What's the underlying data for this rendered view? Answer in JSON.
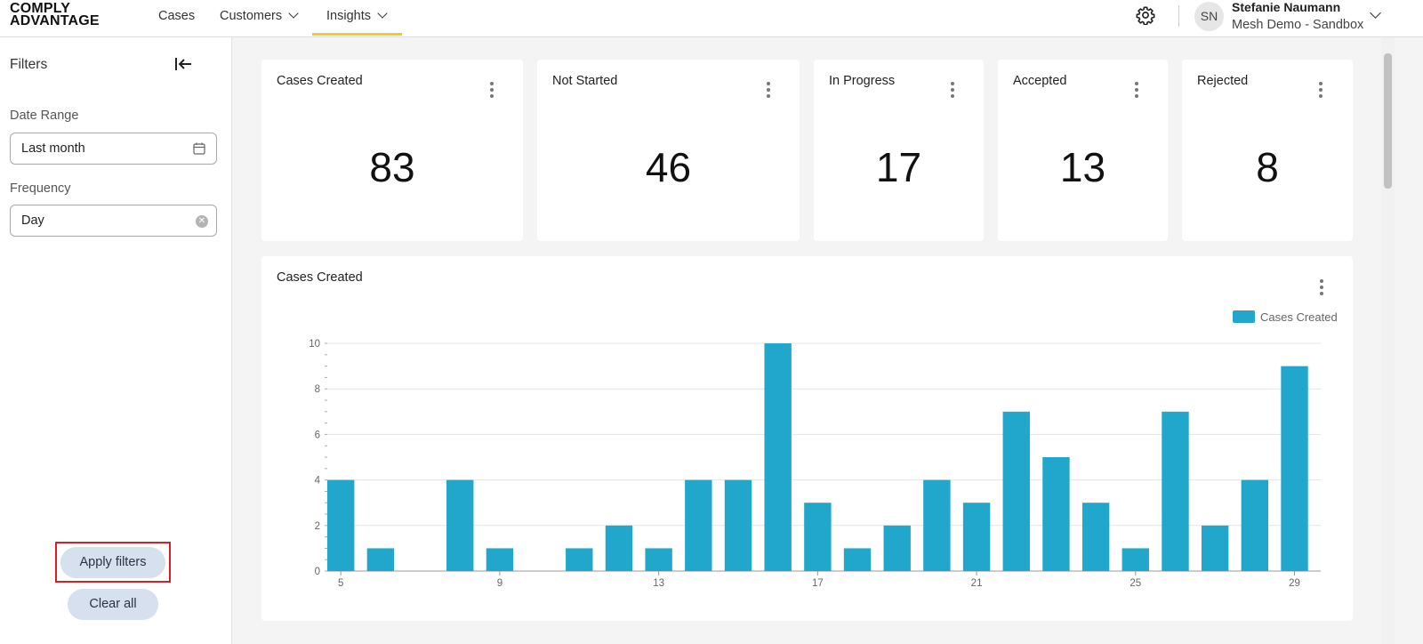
{
  "brand": {
    "line1": "COMPLY",
    "line2": "ADVANTAGE"
  },
  "nav": {
    "tabs": [
      {
        "label": "Cases"
      },
      {
        "label": "Customers"
      },
      {
        "label": "Insights"
      }
    ],
    "active_tab": "Insights"
  },
  "user": {
    "initials": "SN",
    "name": "Stefanie Naumann",
    "org": "Mesh Demo - Sandbox"
  },
  "icons": [
    "gear-icon",
    "collapse-left-icon",
    "calendar-icon",
    "clear-icon",
    "kebab-icon",
    "chevron-down-icon"
  ],
  "filters": {
    "title": "Filters",
    "date_range": {
      "label": "Date Range",
      "value": "Last month"
    },
    "frequency": {
      "label": "Frequency",
      "value": "Day"
    },
    "apply_label": "Apply filters",
    "clear_label": "Clear all"
  },
  "kpis": [
    {
      "title": "Cases Created",
      "value": "83"
    },
    {
      "title": "Not Started",
      "value": "46"
    },
    {
      "title": "In Progress",
      "value": "17"
    },
    {
      "title": "Accepted",
      "value": "13"
    },
    {
      "title": "Rejected",
      "value": "8"
    }
  ],
  "colors": {
    "bar": "#21a7cb",
    "accent": "#f2cc1f",
    "highlight": "#dd1c24"
  },
  "chart_data": {
    "type": "bar",
    "title": "Cases Created",
    "legend": [
      {
        "name": "Cases Created",
        "position": "top-right"
      }
    ],
    "x": [
      5,
      6,
      7,
      8,
      9,
      10,
      11,
      12,
      13,
      14,
      15,
      16,
      17,
      18,
      19,
      20,
      21,
      22,
      23,
      24,
      25,
      26,
      27,
      28,
      29
    ],
    "values": [
      4,
      1,
      0,
      4,
      1,
      0,
      1,
      2,
      1,
      4,
      4,
      10,
      3,
      1,
      2,
      4,
      3,
      7,
      5,
      3,
      1,
      7,
      2,
      4,
      9
    ],
    "x_tick_labels": [
      "5",
      "9",
      "13",
      "17",
      "21",
      "25",
      "29"
    ],
    "y_tick_labels": [
      "0",
      "2",
      "4",
      "6",
      "8",
      "10"
    ],
    "ylim": [
      0,
      10
    ],
    "grid": true
  }
}
